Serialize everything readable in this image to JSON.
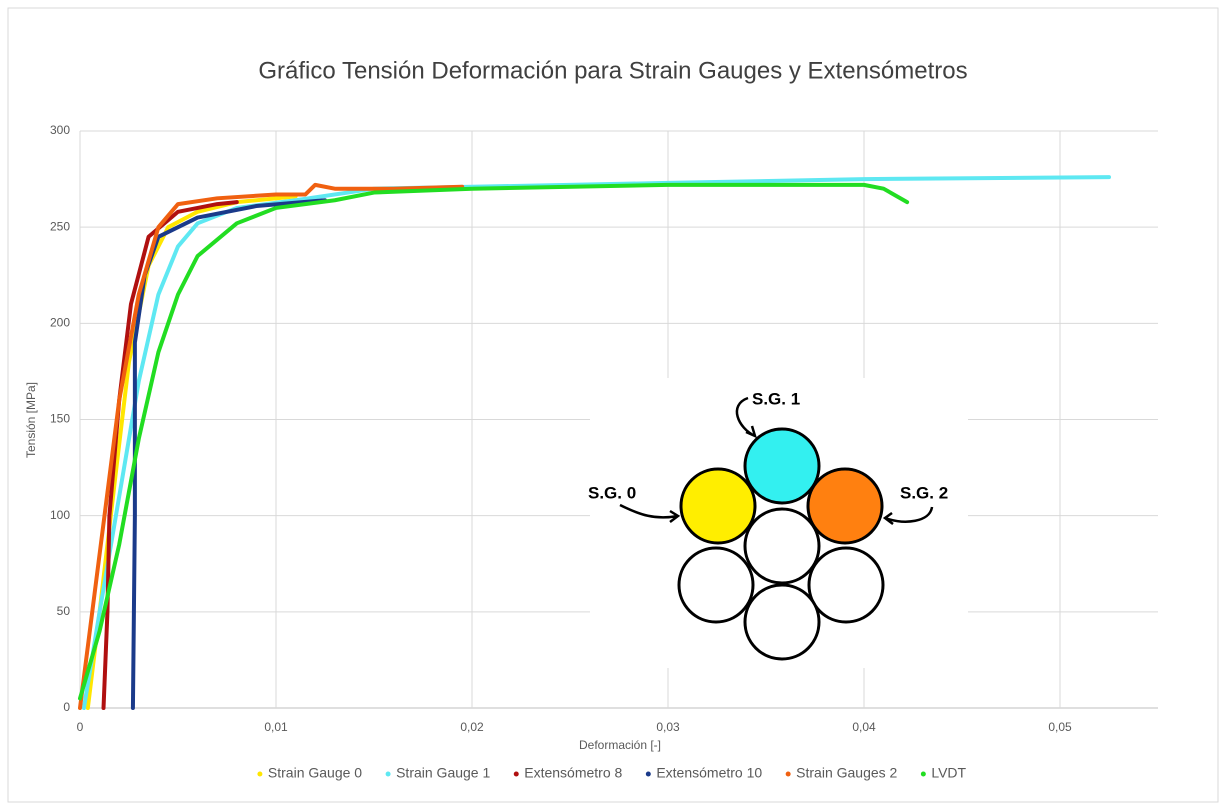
{
  "chart_data": {
    "type": "line",
    "title": "Gráfico Tensión Deformación para Strain Gauges y Extensómetros",
    "x_label": "Deformación [-]",
    "y_label": "Tensión [MPa]",
    "xlim": [
      0,
      0.055
    ],
    "ylim": [
      0,
      300
    ],
    "xticks": [
      0,
      {
        "value": 0.01,
        "label": "0,01"
      },
      {
        "value": 0.02,
        "label": "0,02"
      },
      {
        "value": 0.03,
        "label": "0,03"
      },
      {
        "value": 0.04,
        "label": "0,04"
      },
      {
        "value": 0.05,
        "label": "0,05"
      }
    ],
    "yticks": [
      0,
      50,
      100,
      150,
      200,
      250,
      300
    ],
    "grid": true,
    "legend": "bottom",
    "series": [
      {
        "name": "Strain Gauge 0",
        "color": "#ffe600",
        "x": [
          0.0004,
          0.001,
          0.0018,
          0.0025,
          0.0035,
          0.0045,
          0.006,
          0.008,
          0.011
        ],
        "values": [
          0,
          50,
          120,
          180,
          230,
          250,
          258,
          263,
          266
        ]
      },
      {
        "name": "Strain Gauge 1",
        "color": "#5ee8f2",
        "x": [
          0.0002,
          0.001,
          0.002,
          0.003,
          0.004,
          0.005,
          0.006,
          0.008,
          0.011,
          0.015,
          0.02,
          0.03,
          0.04,
          0.0525
        ],
        "values": [
          0,
          50,
          110,
          170,
          215,
          240,
          252,
          260,
          264,
          270,
          271,
          273,
          275,
          276
        ]
      },
      {
        "name": "Extensómetro 8",
        "color": "#b01010",
        "x": [
          0.0012,
          0.0014,
          0.0015,
          0.002,
          0.0026,
          0.0035,
          0.005,
          0.007,
          0.008
        ],
        "values": [
          0,
          50,
          100,
          160,
          210,
          245,
          258,
          262,
          263
        ]
      },
      {
        "name": "Extensómetro 10",
        "color": "#1a3a8a",
        "x": [
          0.0027,
          0.0028,
          0.0028,
          0.0033,
          0.004,
          0.006,
          0.009,
          0.0125
        ],
        "values": [
          0,
          100,
          190,
          225,
          245,
          255,
          261,
          264
        ]
      },
      {
        "name": "Strain Gauges 2",
        "color": "#f06010",
        "x": [
          0,
          0.001,
          0.002,
          0.003,
          0.004,
          0.005,
          0.007,
          0.01,
          0.0115,
          0.012,
          0.013,
          0.016,
          0.0195
        ],
        "values": [
          0,
          80,
          160,
          215,
          250,
          262,
          265,
          267,
          267,
          272,
          270,
          270,
          271
        ]
      },
      {
        "name": "LVDT",
        "color": "#22dd22",
        "x": [
          0,
          0.001,
          0.002,
          0.003,
          0.004,
          0.005,
          0.006,
          0.008,
          0.01,
          0.013,
          0.015,
          0.02,
          0.03,
          0.04,
          0.041,
          0.0422
        ],
        "values": [
          5,
          40,
          85,
          140,
          185,
          215,
          235,
          252,
          260,
          264,
          268,
          270,
          272,
          272,
          270,
          263
        ]
      }
    ],
    "annotations": [
      "S.G. 1",
      "S.G. 0",
      "S.G. 2"
    ]
  }
}
